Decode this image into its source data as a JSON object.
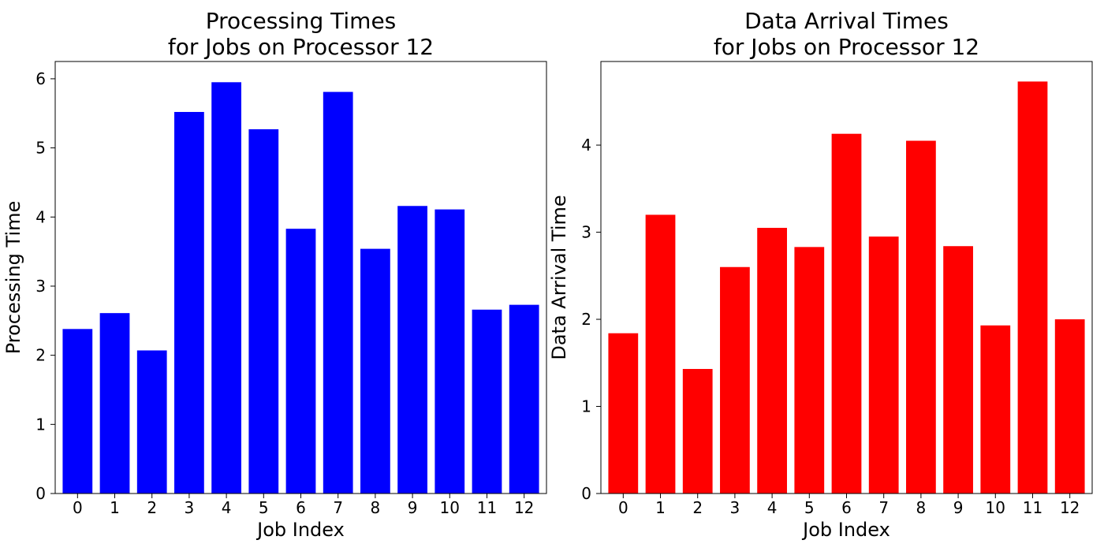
{
  "chart_data": [
    {
      "type": "bar",
      "title": "Processing Times\nfor Jobs on Processor 12",
      "xlabel": "Job Index",
      "ylabel": "Processing Time",
      "categories": [
        "0",
        "1",
        "2",
        "3",
        "4",
        "5",
        "6",
        "7",
        "8",
        "9",
        "10",
        "11",
        "12"
      ],
      "values": [
        2.38,
        2.61,
        2.07,
        5.52,
        5.95,
        5.27,
        3.83,
        5.81,
        3.54,
        4.16,
        4.11,
        2.66,
        2.73
      ],
      "color": "#0000ff",
      "ylim": [
        0,
        6.25
      ],
      "yticks": [
        "0",
        "1",
        "2",
        "3",
        "4",
        "5",
        "6"
      ],
      "grid": false,
      "legend": "none"
    },
    {
      "type": "bar",
      "title": "Data Arrival Times\nfor Jobs on Processor 12",
      "xlabel": "Job Index",
      "ylabel": "Data Arrival Time",
      "categories": [
        "0",
        "1",
        "2",
        "3",
        "4",
        "5",
        "6",
        "7",
        "8",
        "9",
        "10",
        "11",
        "12"
      ],
      "values": [
        1.84,
        3.2,
        1.43,
        2.6,
        3.05,
        2.83,
        4.13,
        2.95,
        4.05,
        2.84,
        1.93,
        4.73,
        2.0
      ],
      "color": "#ff0000",
      "ylim": [
        0,
        4.96
      ],
      "yticks": [
        "0",
        "1",
        "2",
        "3",
        "4"
      ],
      "grid": false,
      "legend": "none"
    }
  ]
}
